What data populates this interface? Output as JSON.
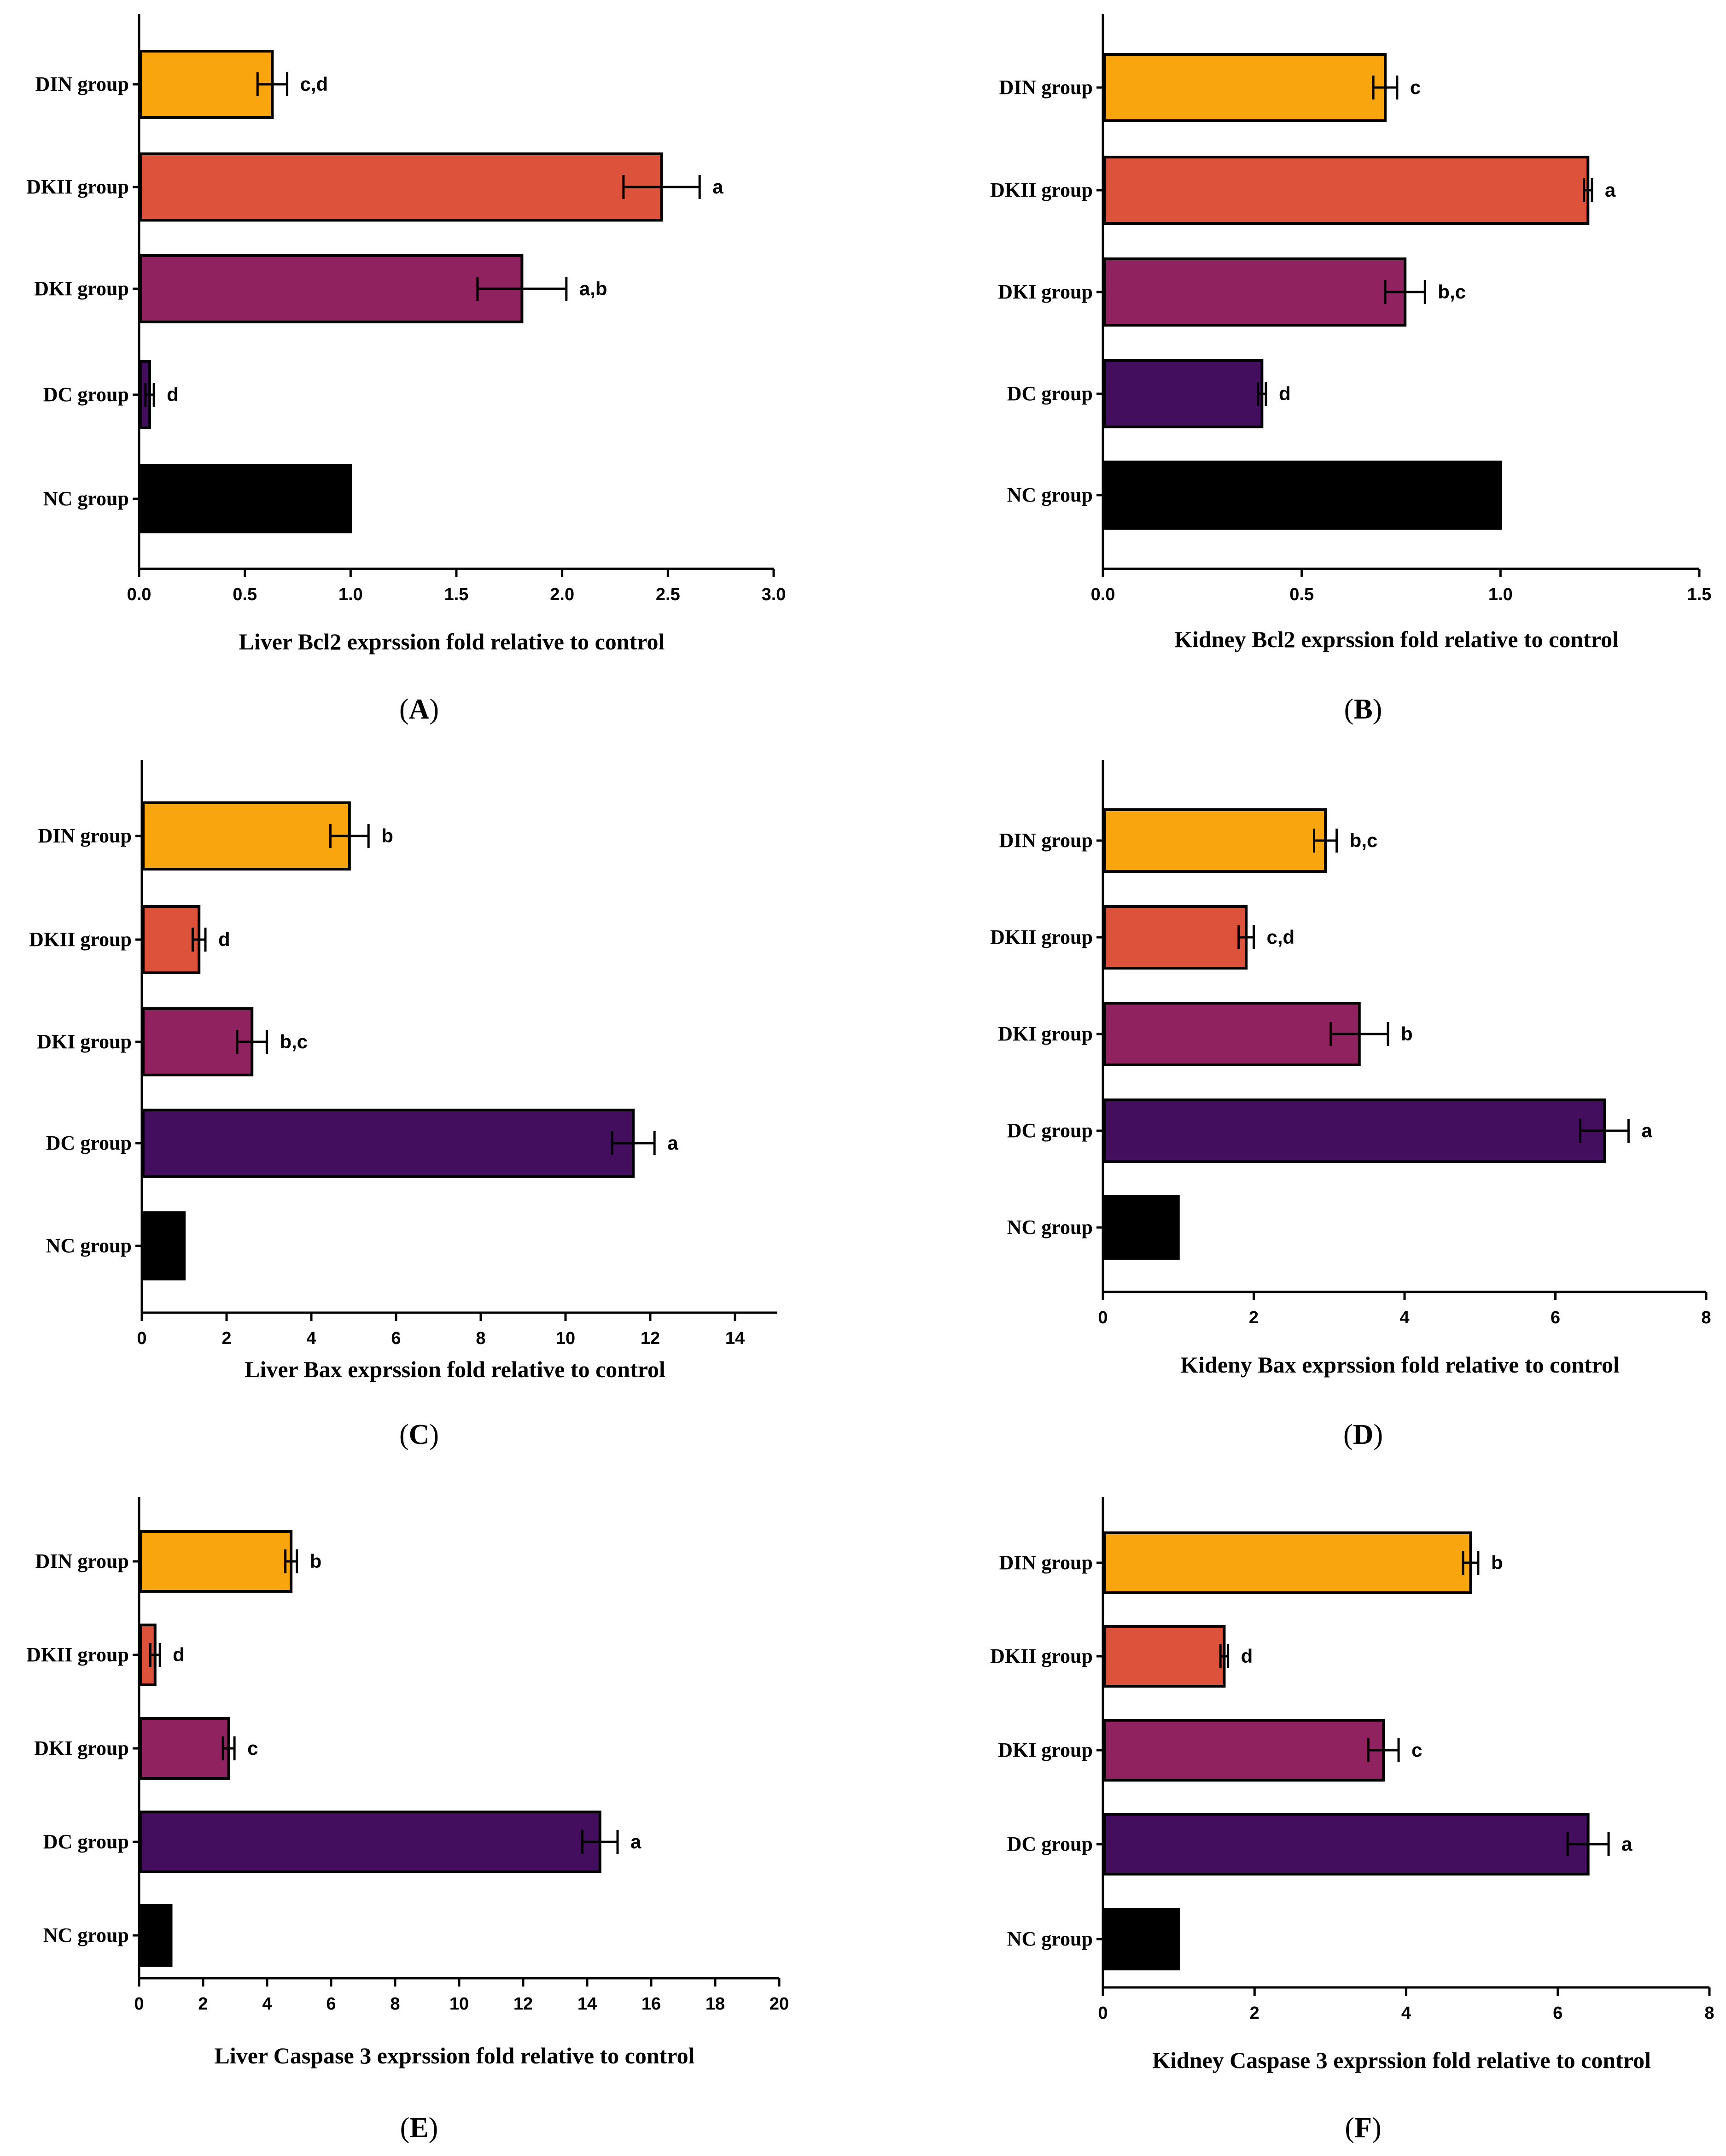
{
  "colors": {
    "NC group": "#000000",
    "DC group": "#430e5e",
    "DKI group": "#8f225f",
    "DKII group": "#dd523a",
    "DIN group": "#f9a50d"
  },
  "chart_data": [
    {
      "type": "bar",
      "orientation": "horizontal",
      "panel": "A",
      "categories": [
        "DIN group",
        "DKII group",
        "DKI group",
        "DC group",
        "NC group"
      ],
      "values": [
        0.63,
        2.47,
        1.81,
        0.05,
        1.0
      ],
      "errors": [
        0.07,
        0.18,
        0.21,
        0.02,
        0
      ],
      "significance": [
        "c,d",
        "a",
        "a,b",
        "d",
        ""
      ],
      "xlabel": "Liver Bcl2 exprssion fold relative to control",
      "xlim": [
        0,
        3.0
      ],
      "xticks": [
        "0.0",
        "0.5",
        "1.0",
        "1.5",
        "2.0",
        "2.5",
        "3.0"
      ]
    },
    {
      "type": "bar",
      "orientation": "horizontal",
      "panel": "B",
      "categories": [
        "DIN group",
        "DKII group",
        "DKI group",
        "DC group",
        "NC group"
      ],
      "values": [
        0.71,
        1.22,
        0.76,
        0.4,
        1.0
      ],
      "errors": [
        0.03,
        0.01,
        0.05,
        0.01,
        0
      ],
      "significance": [
        "c",
        "a",
        "b,c",
        "d",
        ""
      ],
      "xlabel": "Kidney Bcl2 exprssion fold relative to control",
      "xlim": [
        0,
        1.5
      ],
      "xticks": [
        "0.0",
        "0.5",
        "1.0",
        "1.5"
      ]
    },
    {
      "type": "bar",
      "orientation": "horizontal",
      "panel": "C",
      "categories": [
        "DIN group",
        "DKII group",
        "DKI group",
        "DC group",
        "NC group"
      ],
      "values": [
        4.9,
        1.35,
        2.6,
        11.6,
        1.0
      ],
      "errors": [
        0.45,
        0.15,
        0.35,
        0.5,
        0
      ],
      "significance": [
        "b",
        "d",
        "b,c",
        "a",
        ""
      ],
      "xlabel": "Liver Bax exprssion fold relative to control",
      "xlim": [
        0,
        15
      ],
      "xticks": [
        "0",
        "2",
        "4",
        "6",
        "8",
        "10",
        "12",
        "14"
      ]
    },
    {
      "type": "bar",
      "orientation": "horizontal",
      "panel": "D",
      "categories": [
        "DIN group",
        "DKII group",
        "DKI group",
        "DC group",
        "NC group"
      ],
      "values": [
        2.95,
        1.9,
        3.4,
        6.65,
        1.0
      ],
      "errors": [
        0.15,
        0.1,
        0.38,
        0.32,
        0
      ],
      "significance": [
        "b,c",
        "c,d",
        "b",
        "a",
        ""
      ],
      "xlabel": "Kideny Bax exprssion fold relative to control",
      "xlim": [
        0,
        8
      ],
      "xticks": [
        "0",
        "2",
        "4",
        "6",
        "8"
      ]
    },
    {
      "type": "bar",
      "orientation": "horizontal",
      "panel": "E",
      "categories": [
        "DIN group",
        "DKII group",
        "DKI group",
        "DC group",
        "NC group"
      ],
      "values": [
        4.75,
        0.5,
        2.8,
        14.4,
        1.0
      ],
      "errors": [
        0.18,
        0.15,
        0.18,
        0.55,
        0
      ],
      "significance": [
        "b",
        "d",
        "c",
        "a",
        ""
      ],
      "xlabel": "Liver Caspase 3 exprssion fold relative to control",
      "xlim": [
        0,
        20
      ],
      "xticks": [
        "0",
        "2",
        "4",
        "6",
        "8",
        "10",
        "12",
        "14",
        "16",
        "18",
        "20"
      ]
    },
    {
      "type": "bar",
      "orientation": "horizontal",
      "panel": "F",
      "categories": [
        "DIN group",
        "DKII group",
        "DKI group",
        "DC group",
        "NC group"
      ],
      "values": [
        4.85,
        1.6,
        3.7,
        6.4,
        1.0
      ],
      "errors": [
        0.1,
        0.05,
        0.2,
        0.27,
        0
      ],
      "significance": [
        "b",
        "d",
        "c",
        "a",
        ""
      ],
      "xlabel": "Kidney Caspase 3 exprssion fold relative to control",
      "xlim": [
        0,
        8
      ],
      "xticks": [
        "0",
        "2",
        "4",
        "6",
        "8"
      ]
    }
  ]
}
